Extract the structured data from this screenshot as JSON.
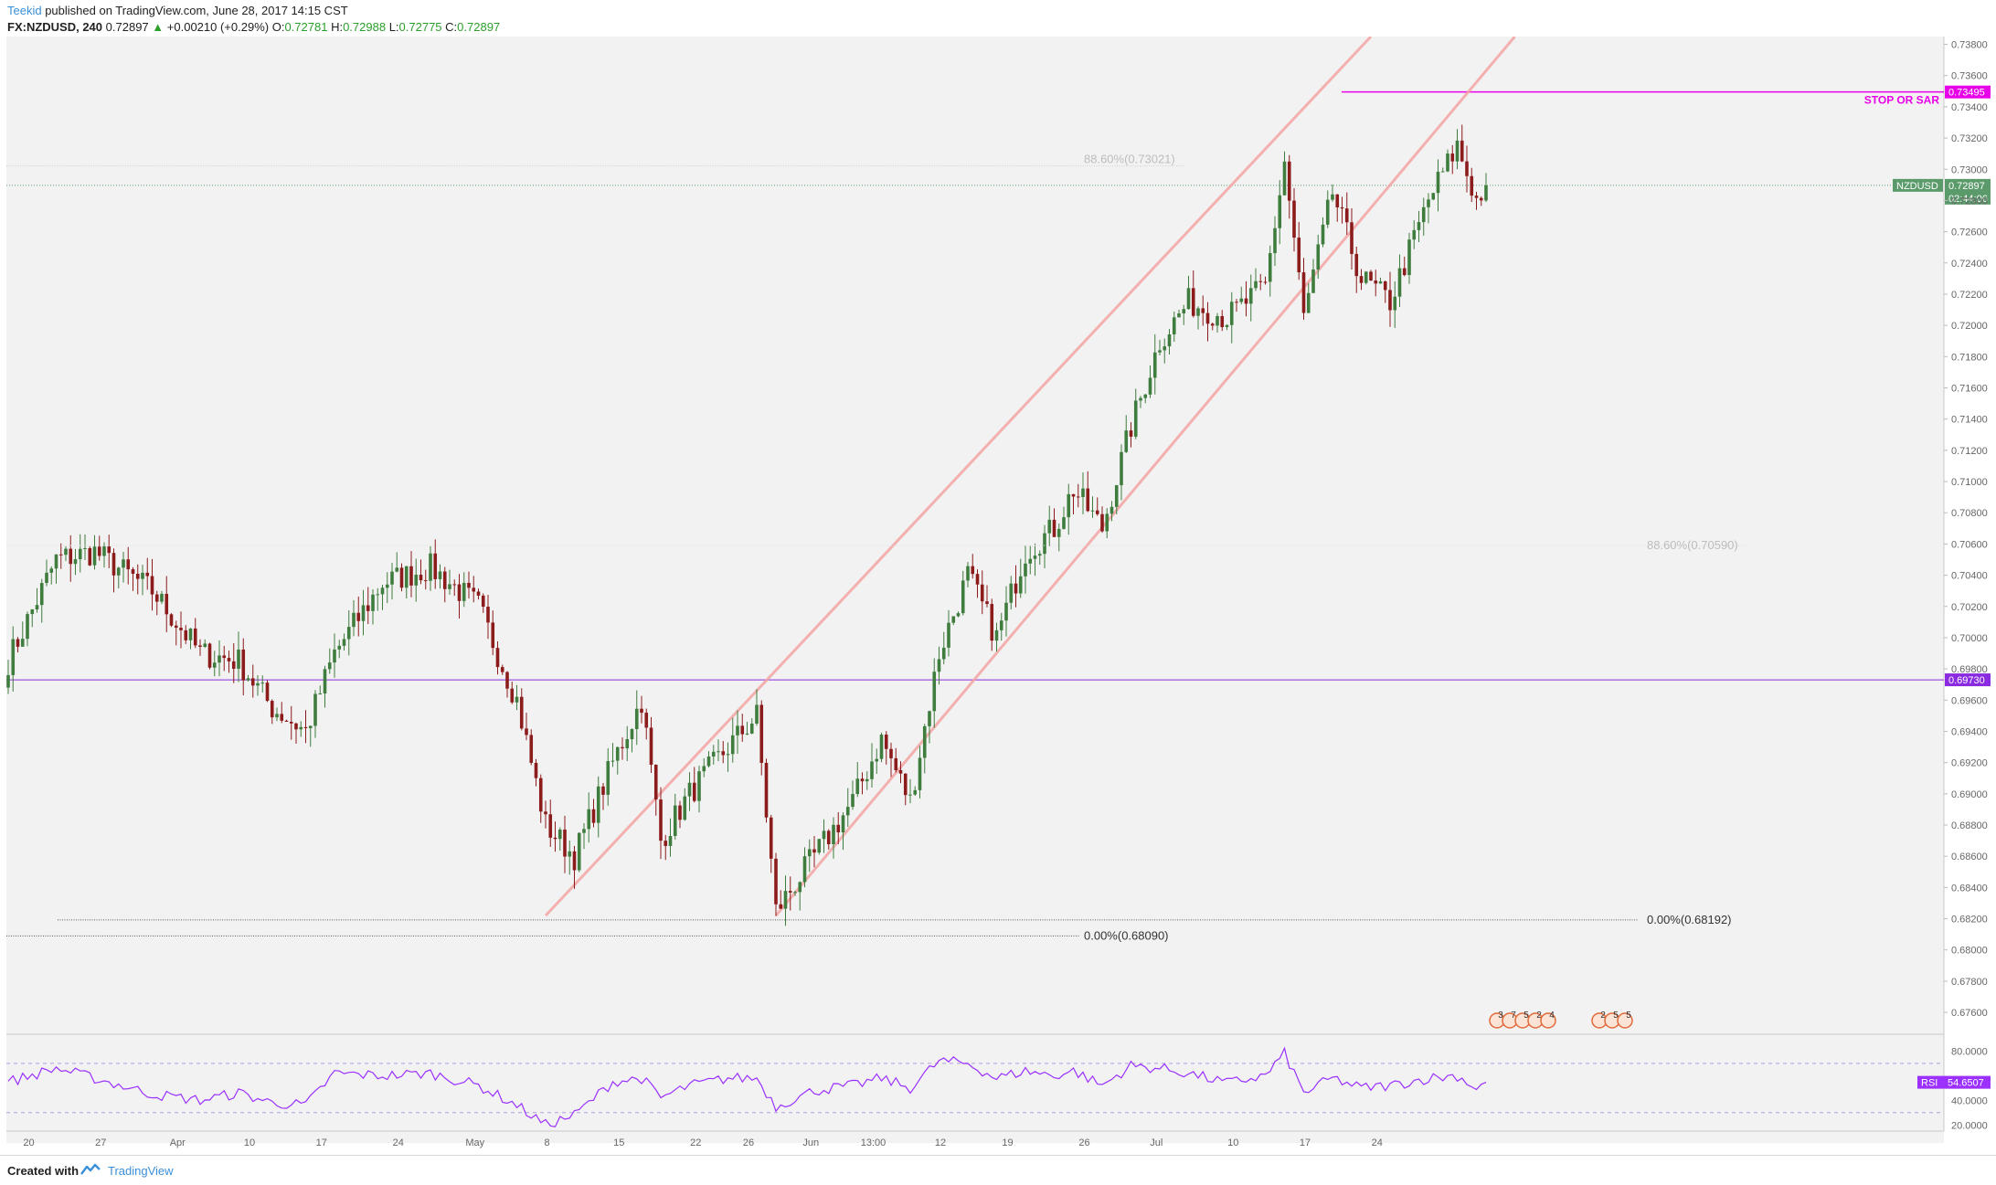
{
  "header": {
    "author": "Teekid",
    "published": "published on TradingView.com, June 28, 2017 14:15 CST",
    "symbol": "FX:NZDUSD, 240",
    "last": "0.72897",
    "change_arrow": "▲",
    "change": "+0.00210 (+0.29%)",
    "o_label": "O:",
    "o_value": "0.72781",
    "h_label": "H:",
    "h_value": "0.72988",
    "l_label": "L:",
    "l_value": "0.72775",
    "c_label": "C:",
    "c_value": "0.72897"
  },
  "footer": {
    "created_with": "Created with",
    "brand": "TradingView"
  },
  "colors": {
    "up": "#3f7d3f",
    "down": "#8c1c1c",
    "channel": "#f4a3a3",
    "stop": "#e800e8",
    "support": "#8a2be2",
    "rsi": "#9b30ff",
    "price_tag": "#5b9b6b",
    "background": "#f2f2f2"
  },
  "chart_data": {
    "type": "candlestick",
    "symbol": "NZDUSD",
    "timeframe": "240",
    "ylim": [
      0.6746,
      0.7385
    ],
    "yticks": [
      "0.73800",
      "0.73600",
      "0.73400",
      "0.73200",
      "0.73000",
      "0.72800",
      "0.72600",
      "0.72400",
      "0.72200",
      "0.72000",
      "0.71800",
      "0.71600",
      "0.71400",
      "0.71200",
      "0.71000",
      "0.70800",
      "0.70600",
      "0.70400",
      "0.70200",
      "0.70000",
      "0.69800",
      "0.69600",
      "0.69400",
      "0.69200",
      "0.69000",
      "0.68800",
      "0.68600",
      "0.68400",
      "0.68200",
      "0.68000",
      "0.67800",
      "0.67600"
    ],
    "xticks": [
      "20",
      "27",
      "Apr",
      "10",
      "17",
      "24",
      "May",
      "8",
      "15",
      "22",
      "26",
      "Jun",
      "13:00",
      "12",
      "19",
      "26",
      "Jul",
      "10",
      "17",
      "24"
    ],
    "price_series_waypoints": [
      {
        "bar": 0,
        "price": 0.6985
      },
      {
        "bar": 10,
        "price": 0.705
      },
      {
        "bar": 18,
        "price": 0.7055
      },
      {
        "bar": 30,
        "price": 0.703
      },
      {
        "bar": 40,
        "price": 0.699
      },
      {
        "bar": 48,
        "price": 0.6985
      },
      {
        "bar": 55,
        "price": 0.6955
      },
      {
        "bar": 62,
        "price": 0.694
      },
      {
        "bar": 68,
        "price": 0.699
      },
      {
        "bar": 78,
        "price": 0.7035
      },
      {
        "bar": 88,
        "price": 0.7045
      },
      {
        "bar": 98,
        "price": 0.702
      },
      {
        "bar": 106,
        "price": 0.696
      },
      {
        "bar": 112,
        "price": 0.688
      },
      {
        "bar": 118,
        "price": 0.686
      },
      {
        "bar": 126,
        "price": 0.692
      },
      {
        "bar": 132,
        "price": 0.696
      },
      {
        "bar": 136,
        "price": 0.687
      },
      {
        "bar": 142,
        "price": 0.69
      },
      {
        "bar": 150,
        "price": 0.693
      },
      {
        "bar": 156,
        "price": 0.695
      },
      {
        "bar": 160,
        "price": 0.6825
      },
      {
        "bar": 168,
        "price": 0.686
      },
      {
        "bar": 176,
        "price": 0.6895
      },
      {
        "bar": 182,
        "price": 0.6935
      },
      {
        "bar": 188,
        "price": 0.6895
      },
      {
        "bar": 194,
        "price": 0.699
      },
      {
        "bar": 200,
        "price": 0.704
      },
      {
        "bar": 206,
        "price": 0.7
      },
      {
        "bar": 212,
        "price": 0.7055
      },
      {
        "bar": 218,
        "price": 0.707
      },
      {
        "bar": 222,
        "price": 0.7095
      },
      {
        "bar": 228,
        "price": 0.707
      },
      {
        "bar": 234,
        "price": 0.7135
      },
      {
        "bar": 240,
        "price": 0.719
      },
      {
        "bar": 246,
        "price": 0.7215
      },
      {
        "bar": 254,
        "price": 0.7205
      },
      {
        "bar": 262,
        "price": 0.7225
      },
      {
        "bar": 266,
        "price": 0.7305
      },
      {
        "bar": 270,
        "price": 0.7205
      },
      {
        "bar": 276,
        "price": 0.7285
      },
      {
        "bar": 282,
        "price": 0.723
      },
      {
        "bar": 288,
        "price": 0.7215
      },
      {
        "bar": 296,
        "price": 0.728
      },
      {
        "bar": 302,
        "price": 0.7315
      },
      {
        "bar": 306,
        "price": 0.728
      },
      {
        "bar": 308,
        "price": 0.72897
      }
    ],
    "bars_total": 309,
    "levels": [
      {
        "name": "stop",
        "price": 0.73495,
        "label": "STOP OR SAR",
        "tag": "0.73495"
      },
      {
        "name": "support",
        "price": 0.6973,
        "tag": "0.69730"
      },
      {
        "name": "current",
        "price": 0.72897,
        "tag": "0.72897",
        "symbol_tag": "NZDUSD",
        "countdown": "02:44:06"
      }
    ],
    "fib": [
      {
        "label": "88.60%(0.73021)",
        "price": 0.73021
      },
      {
        "label": "88.60%(0.70590)",
        "price": 0.7059
      },
      {
        "label": "0.00%(0.68192)",
        "price": 0.68192
      },
      {
        "label": "0.00%(0.68090)",
        "price": 0.6809
      }
    ],
    "channel": [
      {
        "from": {
          "bar": 112,
          "price": 0.6822
        },
        "to": {
          "bar": 284,
          "price": 0.7385
        }
      },
      {
        "from": {
          "bar": 160,
          "price": 0.6822
        },
        "to": {
          "bar": 314,
          "price": 0.7385
        }
      }
    ],
    "rsi": {
      "name": "RSI",
      "value": "54.6507",
      "ylim": [
        15,
        90
      ],
      "yticks": [
        "80.0000",
        "40.0000",
        "20.0000"
      ],
      "upper": 70,
      "lower": 30,
      "waypoints": [
        {
          "bar": 0,
          "v": 55
        },
        {
          "bar": 10,
          "v": 66
        },
        {
          "bar": 18,
          "v": 58
        },
        {
          "bar": 30,
          "v": 45
        },
        {
          "bar": 40,
          "v": 40
        },
        {
          "bar": 48,
          "v": 46
        },
        {
          "bar": 55,
          "v": 38
        },
        {
          "bar": 62,
          "v": 36
        },
        {
          "bar": 68,
          "v": 62
        },
        {
          "bar": 78,
          "v": 60
        },
        {
          "bar": 88,
          "v": 62
        },
        {
          "bar": 98,
          "v": 52
        },
        {
          "bar": 106,
          "v": 36
        },
        {
          "bar": 112,
          "v": 20
        },
        {
          "bar": 118,
          "v": 28
        },
        {
          "bar": 126,
          "v": 55
        },
        {
          "bar": 132,
          "v": 58
        },
        {
          "bar": 136,
          "v": 42
        },
        {
          "bar": 142,
          "v": 52
        },
        {
          "bar": 150,
          "v": 58
        },
        {
          "bar": 156,
          "v": 58
        },
        {
          "bar": 160,
          "v": 35
        },
        {
          "bar": 168,
          "v": 48
        },
        {
          "bar": 176,
          "v": 52
        },
        {
          "bar": 182,
          "v": 58
        },
        {
          "bar": 188,
          "v": 50
        },
        {
          "bar": 194,
          "v": 72
        },
        {
          "bar": 200,
          "v": 70
        },
        {
          "bar": 206,
          "v": 58
        },
        {
          "bar": 212,
          "v": 64
        },
        {
          "bar": 218,
          "v": 60
        },
        {
          "bar": 222,
          "v": 64
        },
        {
          "bar": 228,
          "v": 52
        },
        {
          "bar": 234,
          "v": 68
        },
        {
          "bar": 240,
          "v": 66
        },
        {
          "bar": 246,
          "v": 62
        },
        {
          "bar": 254,
          "v": 54
        },
        {
          "bar": 262,
          "v": 60
        },
        {
          "bar": 266,
          "v": 78
        },
        {
          "bar": 270,
          "v": 46
        },
        {
          "bar": 276,
          "v": 58
        },
        {
          "bar": 282,
          "v": 50
        },
        {
          "bar": 288,
          "v": 52
        },
        {
          "bar": 296,
          "v": 58
        },
        {
          "bar": 302,
          "v": 60
        },
        {
          "bar": 306,
          "v": 50
        },
        {
          "bar": 308,
          "v": 54.65
        }
      ]
    },
    "events": {
      "group1": [
        "3",
        "7",
        "5",
        "2",
        "4"
      ],
      "group2": [
        "2",
        "5",
        "5"
      ]
    }
  }
}
